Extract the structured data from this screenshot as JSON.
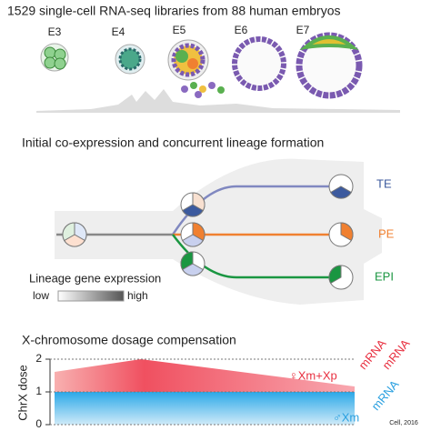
{
  "header": {
    "title": "1529 single-cell RNA-seq libraries from 88 human embryos",
    "stages": [
      "E3",
      "E4",
      "E5",
      "E6",
      "E7"
    ]
  },
  "lineage": {
    "title": "Initial co-expression and concurrent lineage formation",
    "lineages": [
      "TE",
      "PE",
      "EPI"
    ],
    "legend": {
      "title": "Lineage gene expression",
      "low": "low",
      "high": "high"
    }
  },
  "dosage": {
    "title": "X-chromosome dosage compensation",
    "axis_label": "ChrX dose",
    "ticks": [
      2,
      1,
      0
    ],
    "female_mrna_1": "mRNA",
    "female_mrna_2": "mRNA",
    "female_label": "♀Xm+Xp",
    "male_mrna": "mRNA",
    "male_label": "♂Xm"
  },
  "citation": "Cell, 2016"
}
